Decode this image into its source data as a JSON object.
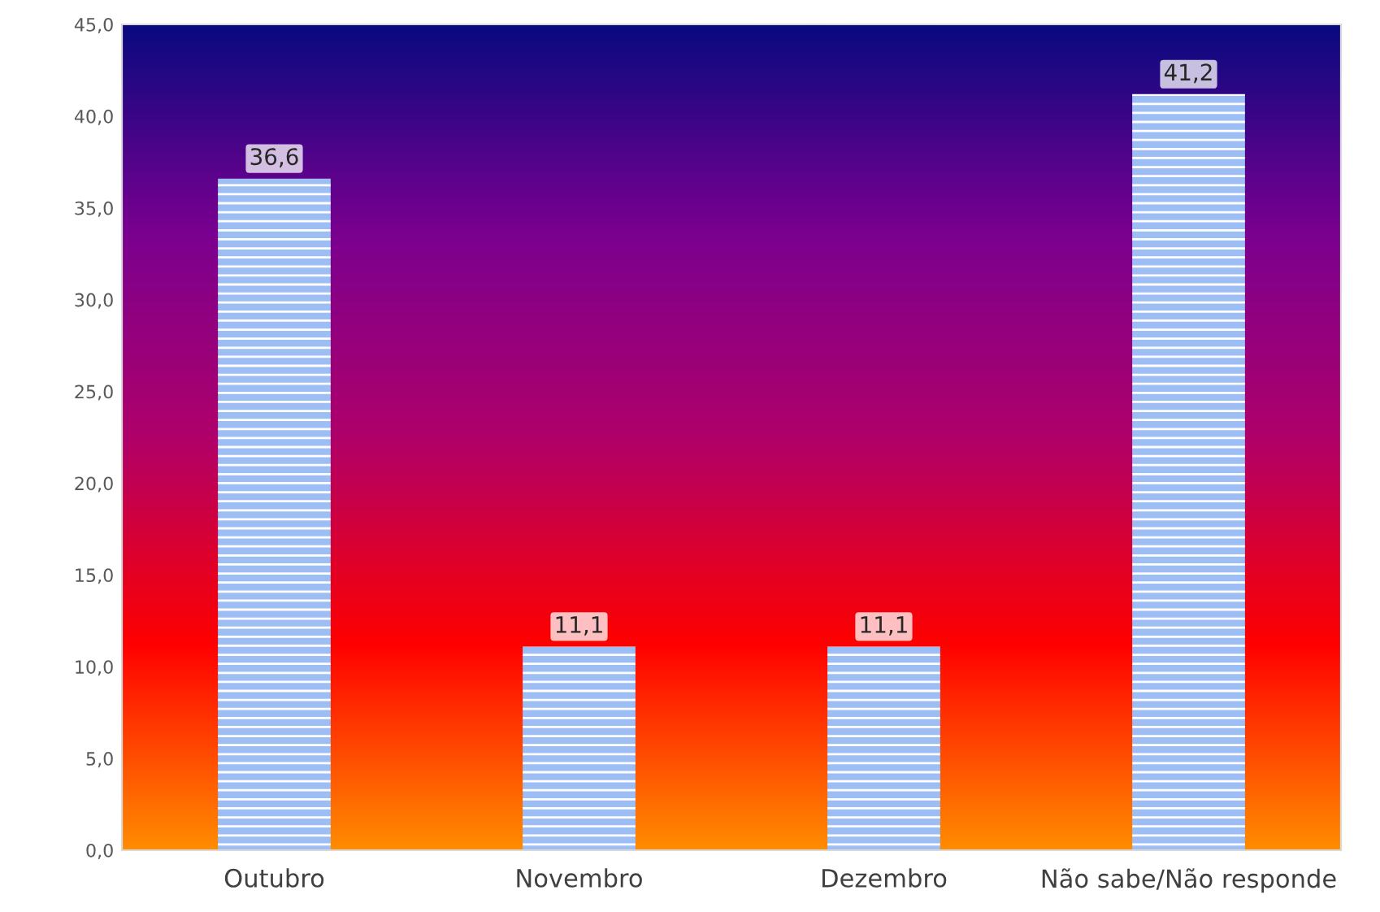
{
  "chart_data": {
    "type": "bar",
    "categories": [
      "Outubro",
      "Novembro",
      "Dezembro",
      "Não sabe/Não responde"
    ],
    "values": [
      36.6,
      11.1,
      11.1,
      41.2
    ],
    "value_labels": [
      "36,6",
      "11,1",
      "11,1",
      "41,2"
    ],
    "color": "#9dbdf5",
    "ylim": [
      0,
      45
    ],
    "yticks": [
      {
        "value": 0,
        "label": "0,0"
      },
      {
        "value": 5,
        "label": "5,0"
      },
      {
        "value": 10,
        "label": "10,0"
      },
      {
        "value": 15,
        "label": "15,0"
      },
      {
        "value": 20,
        "label": "20,0"
      },
      {
        "value": 25,
        "label": "25,0"
      },
      {
        "value": 30,
        "label": "30,0"
      },
      {
        "value": 35,
        "label": "35,0"
      },
      {
        "value": 40,
        "label": "40,0"
      },
      {
        "value": 45,
        "label": "45,0"
      }
    ],
    "grid": false,
    "legend": false
  }
}
